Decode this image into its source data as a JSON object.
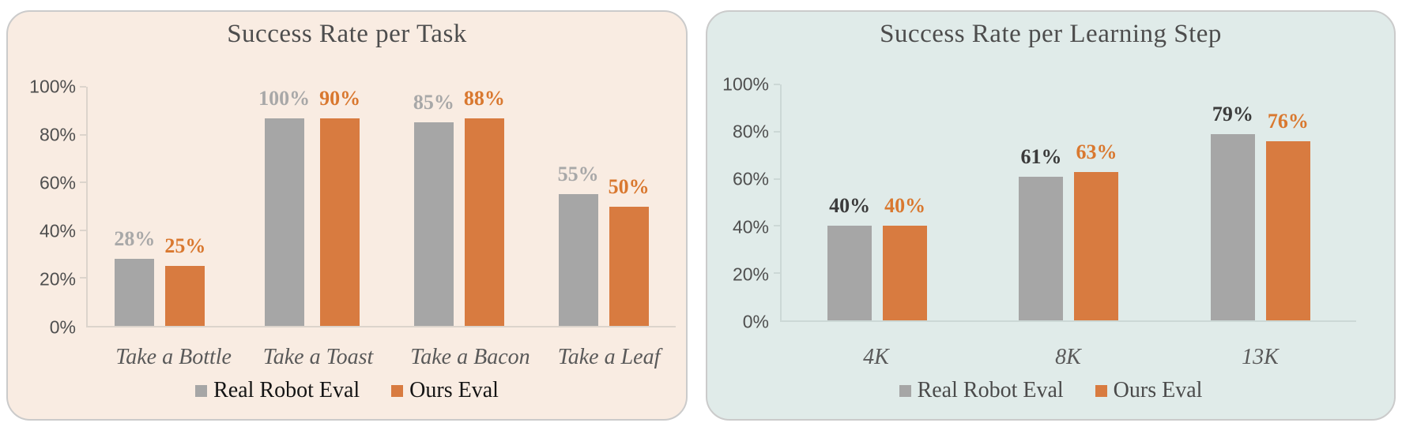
{
  "colors": {
    "gray_bar": "#A6A6A6",
    "orange_bar": "#D87B40",
    "orange_label": "#D9782F",
    "gray_label_left": "#A8A8A8",
    "gray_label_right": "#3B3B3B",
    "panel_left_bg": "#F9ECE2",
    "panel_right_bg": "#E0EBE9",
    "panel_border": "#CBCBCB",
    "title_text": "#4D4D4D",
    "axis_text": "#4F4F4F",
    "category_text": "#595959",
    "legend_text_left": "#141414",
    "legend_text_right": "#4A4A4A",
    "axis_left": "#DCD4CC",
    "axis_right": "#CCD8D6"
  },
  "chart_data": [
    {
      "type": "bar",
      "title": "Success Rate per Task",
      "categories": [
        "Take a Bottle",
        "Take a Toast",
        "Take a Bacon",
        "Take a Leaf"
      ],
      "series": [
        {
          "name": "Real Robot Eval",
          "values": [
            28,
            100,
            85,
            55
          ],
          "color": "#A6A6A6"
        },
        {
          "name": "Ours Eval",
          "values": [
            25,
            90,
            88,
            50
          ],
          "color": "#D87B40"
        }
      ],
      "value_labels": [
        [
          "28%",
          "100%",
          "85%",
          "55%"
        ],
        [
          "25%",
          "90%",
          "88%",
          "50%"
        ]
      ],
      "y_ticks": [
        "100%",
        "80%",
        "60%",
        "40%",
        "20%",
        "0%"
      ],
      "ylim": [
        0,
        100
      ],
      "grid": false,
      "legend_position": "bottom"
    },
    {
      "type": "bar",
      "title": "Success Rate per Learning Step",
      "categories": [
        "4K",
        "8K",
        "13K"
      ],
      "series": [
        {
          "name": "Real Robot Eval",
          "values": [
            40,
            61,
            79
          ],
          "color": "#A6A6A6"
        },
        {
          "name": "Ours Eval",
          "values": [
            40,
            63,
            76
          ],
          "color": "#D87B40"
        }
      ],
      "value_labels": [
        [
          "40%",
          "61%",
          "79%"
        ],
        [
          "40%",
          "63%",
          "76%"
        ]
      ],
      "y_ticks": [
        "100%",
        "80%",
        "60%",
        "40%",
        "20%",
        "0%"
      ],
      "ylim": [
        0,
        100
      ],
      "grid": false,
      "legend_position": "bottom"
    }
  ]
}
